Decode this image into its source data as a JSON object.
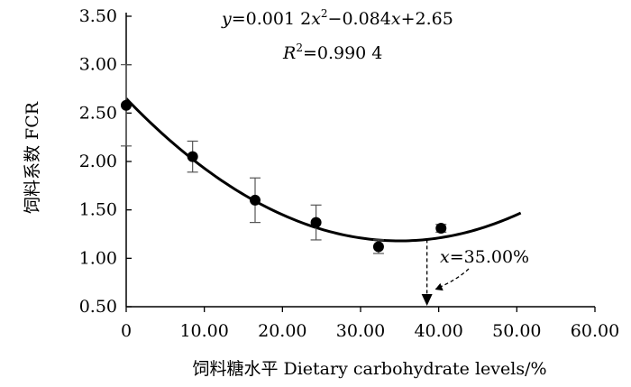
{
  "chart_data": {
    "type": "scatter",
    "x": [
      0,
      8.5,
      16.5,
      24.3,
      32.3,
      40.3
    ],
    "y": [
      2.58,
      2.05,
      1.6,
      1.37,
      1.12,
      1.31
    ],
    "error": [
      0.42,
      0.16,
      0.23,
      0.18,
      0.07,
      0.04
    ],
    "fit": {
      "type": "quadratic",
      "coefficients": [
        0.0012,
        -0.084,
        2.65
      ],
      "x_range": [
        0,
        50.5
      ],
      "equation_parts": [
        "y",
        "=0.001 2",
        "x",
        "2",
        "−0.084",
        "x",
        "+2.65"
      ],
      "r2_parts": [
        "R",
        "2",
        "=0.990 4"
      ]
    },
    "annotation": {
      "x_value": 38.5,
      "parts": [
        "x",
        "=35.00%"
      ]
    },
    "xlabel": "饲料糖水平  Dietary carbohydrate levels/%",
    "ylabel": "饲料系数  FCR",
    "xlim": [
      0,
      60
    ],
    "ylim": [
      0.5,
      3.5
    ],
    "x_ticks": [
      "0",
      "10.00",
      "20.00",
      "30.00",
      "40.00",
      "50.00",
      "60.00"
    ],
    "y_ticks": [
      "0.50",
      "1.00",
      "1.50",
      "2.00",
      "2.50",
      "3.00",
      "3.50"
    ],
    "grid": false,
    "colors": {
      "marks": "#000000"
    }
  }
}
